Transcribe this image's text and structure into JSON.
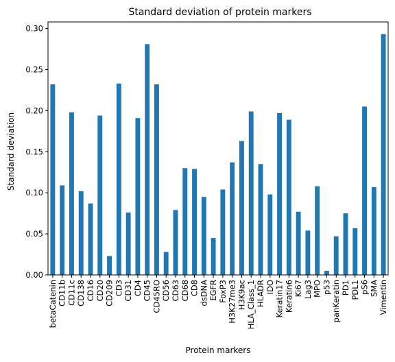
{
  "chart_data": {
    "type": "bar",
    "title": "Standard deviation of protein markers",
    "xlabel": "Protein markers",
    "ylabel": "Standard deviation",
    "ylim": [
      0,
      0.308
    ],
    "yticks": [
      "0.00",
      "0.05",
      "0.10",
      "0.15",
      "0.20",
      "0.25",
      "0.30"
    ],
    "ytick_values": [
      0,
      0.05,
      0.1,
      0.15,
      0.2,
      0.25,
      0.3
    ],
    "grid": false,
    "legend": "none",
    "bar_color": "#1f77b4",
    "categories": [
      "betaCatenin",
      "CD11b",
      "CD11c",
      "CD138",
      "CD16",
      "CD20",
      "CD209",
      "CD3",
      "CD31",
      "CD4",
      "CD45",
      "CD45RO",
      "CD56",
      "CD63",
      "CD68",
      "CD8",
      "dsDNA",
      "EGFR",
      "FoxP3",
      "H3K27me3",
      "H3K9ac",
      "HLA_Class_1",
      "HLADR",
      "IDO",
      "Keratin17",
      "Keratin6",
      "Ki67",
      "Lag3",
      "MPO",
      "p53",
      "panKeratin",
      "PD1",
      "PDL1",
      "pS6",
      "SMA",
      "Vimentin"
    ],
    "values": [
      0.232,
      0.109,
      0.198,
      0.102,
      0.087,
      0.194,
      0.023,
      0.233,
      0.076,
      0.191,
      0.281,
      0.232,
      0.028,
      0.079,
      0.13,
      0.129,
      0.095,
      0.045,
      0.104,
      0.137,
      0.163,
      0.199,
      0.135,
      0.098,
      0.197,
      0.189,
      0.077,
      0.054,
      0.108,
      0.005,
      0.047,
      0.075,
      0.057,
      0.205,
      0.107,
      0.293
    ]
  }
}
